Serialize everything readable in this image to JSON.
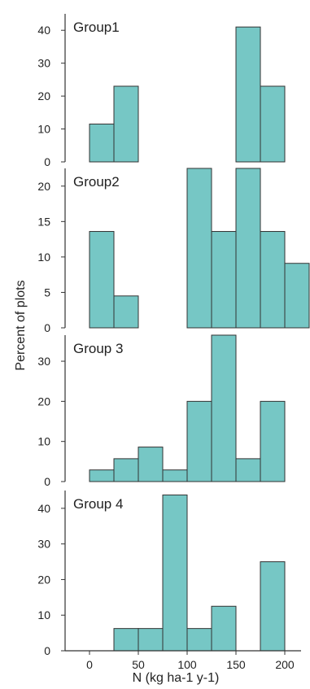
{
  "chart_data": {
    "type": "bar",
    "ylabel": "Percent of plots",
    "xlabel": "N (kg ha-1 y-1)",
    "bar_color": "#76c7c5",
    "bar_edge_color": "#333333",
    "bin_width": 25,
    "xlim": [
      -25,
      225
    ],
    "x_ticks": [
      0,
      50,
      100,
      150,
      200
    ],
    "panels": [
      {
        "label": "Group1",
        "ylim": [
          0,
          45
        ],
        "yticks": [
          0,
          10,
          20,
          30,
          40
        ],
        "bin_starts": [
          0,
          25,
          50,
          75,
          100,
          125,
          150,
          175
        ],
        "values": [
          11.5,
          23,
          0,
          0,
          0,
          0,
          41,
          23
        ]
      },
      {
        "label": "Group2",
        "ylim": [
          0,
          22.5
        ],
        "yticks": [
          0,
          5,
          10,
          15,
          20
        ],
        "bin_starts": [
          0,
          25,
          50,
          75,
          100,
          125,
          150,
          175,
          200
        ],
        "values": [
          13.6,
          4.5,
          0,
          0,
          22.5,
          13.6,
          22.5,
          13.6,
          9.1
        ]
      },
      {
        "label": "Group 3",
        "ylim": [
          0,
          36.5
        ],
        "yticks": [
          0,
          10,
          20,
          30
        ],
        "bin_starts": [
          0,
          25,
          50,
          75,
          100,
          125,
          150,
          175
        ],
        "values": [
          2.9,
          5.7,
          8.6,
          2.9,
          20,
          36.5,
          5.7,
          20
        ]
      },
      {
        "label": "Group 4",
        "ylim": [
          0,
          45
        ],
        "yticks": [
          0,
          10,
          20,
          30,
          40
        ],
        "bin_starts": [
          0,
          25,
          50,
          75,
          100,
          125,
          150,
          175
        ],
        "values": [
          0,
          6.25,
          6.25,
          43.75,
          6.25,
          12.5,
          0,
          25
        ]
      }
    ]
  }
}
